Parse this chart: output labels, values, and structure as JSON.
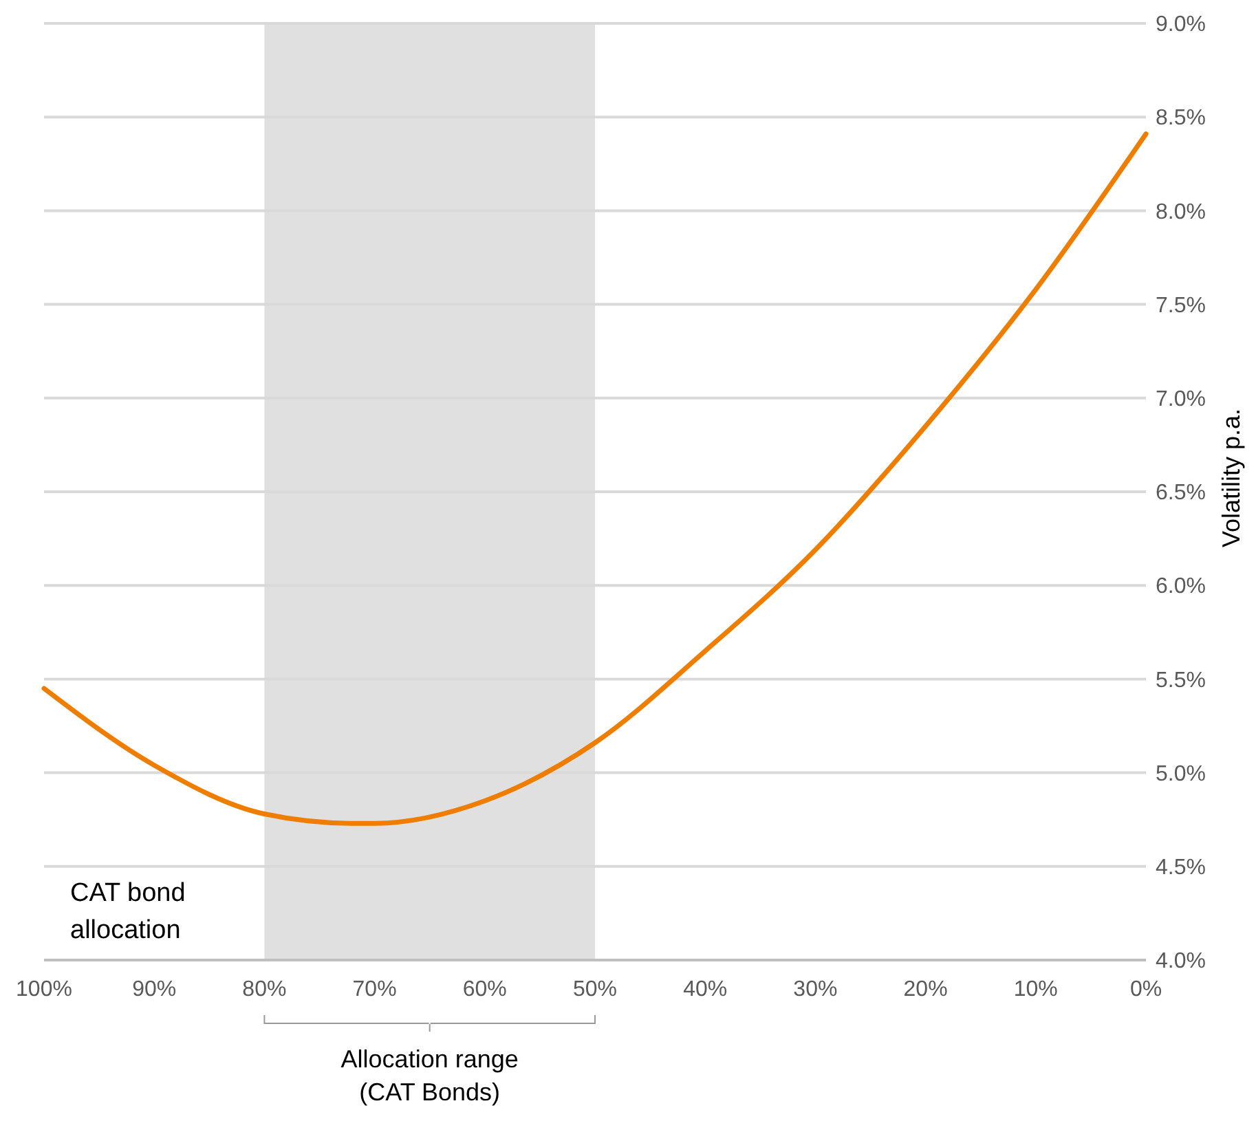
{
  "chart_data": {
    "type": "line",
    "ylabel": "Volatility p.a.",
    "x": [
      100,
      90,
      80,
      72,
      70,
      60,
      50,
      40,
      30,
      20,
      10,
      0
    ],
    "series": [
      {
        "color": "#ee7d00",
        "values": [
          5.45,
          5.04,
          4.78,
          4.73,
          4.73,
          4.85,
          5.16,
          5.65,
          6.19,
          6.85,
          7.58,
          8.41
        ]
      }
    ],
    "xlim": [
      100,
      0
    ],
    "xticks": [
      {
        "value": 100,
        "label": "100%"
      },
      {
        "value": 90,
        "label": "90%"
      },
      {
        "value": 80,
        "label": "80%"
      },
      {
        "value": 70,
        "label": "70%"
      },
      {
        "value": 60,
        "label": "60%"
      },
      {
        "value": 50,
        "label": "50%"
      },
      {
        "value": 40,
        "label": "40%"
      },
      {
        "value": 30,
        "label": "30%"
      },
      {
        "value": 20,
        "label": "20%"
      },
      {
        "value": 10,
        "label": "10%"
      },
      {
        "value": 0,
        "label": "0%"
      }
    ],
    "ylim": [
      4,
      9
    ],
    "yticks": [
      {
        "value": 4,
        "label": "4.0%"
      },
      {
        "value": 4.5,
        "label": "4.5%"
      },
      {
        "value": 5,
        "label": "5.0%"
      },
      {
        "value": 5.5,
        "label": "5.5%"
      },
      {
        "value": 6,
        "label": "6.0%"
      },
      {
        "value": 6.5,
        "label": "6.5%"
      },
      {
        "value": 7,
        "label": "7.0%"
      },
      {
        "value": 7.5,
        "label": "7.5%"
      },
      {
        "value": 8,
        "label": "8.0%"
      },
      {
        "value": 8.5,
        "label": "8.5%"
      },
      {
        "value": 9,
        "label": "9.0%"
      }
    ],
    "bands": [
      {
        "axis": "x",
        "from": 80,
        "to": 50,
        "color": "#e0e0e0"
      }
    ],
    "annotations": [
      "CAT bond allocation",
      "Allocation range (CAT Bonds)"
    ],
    "grid": "y",
    "marker": "none",
    "line_style": "solid"
  }
}
